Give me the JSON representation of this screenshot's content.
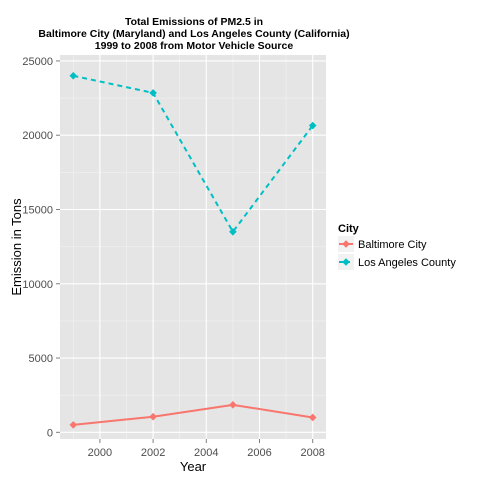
{
  "chart_data": {
    "type": "line",
    "title": [
      "Total Emissions of PM2.5 in",
      "Baltimore City (Maryland) and Los Angeles County (California)",
      "1999 to 2008 from Motor Vehicle Source"
    ],
    "xlabel": "Year",
    "ylabel": "Emission in Tons",
    "xlim": [
      1998.5,
      2008.5
    ],
    "ylim": [
      -450,
      25400
    ],
    "x_ticks": [
      2000,
      2002,
      2004,
      2006,
      2008
    ],
    "y_ticks": [
      0,
      5000,
      10000,
      15000,
      20000,
      25000
    ],
    "grid": true,
    "legend": {
      "title": "City",
      "placement": "right"
    },
    "x": [
      1999,
      2002,
      2005,
      2008
    ],
    "series": [
      {
        "name": "Baltimore City",
        "color": "#f8766d",
        "line_style": "solid",
        "values": [
          500,
          1050,
          1850,
          1000
        ]
      },
      {
        "name": "Los Angeles County",
        "color": "#00bfc4",
        "line_style": "dashed",
        "values": [
          24000,
          22850,
          13500,
          20650
        ]
      }
    ]
  }
}
